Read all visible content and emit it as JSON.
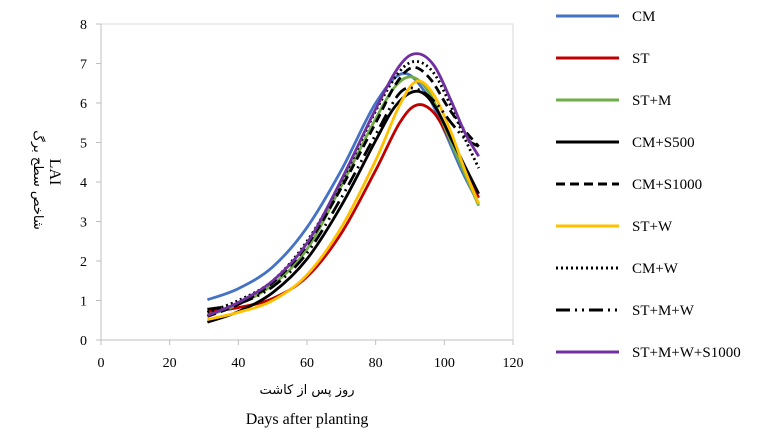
{
  "chart_data": {
    "type": "line",
    "title": "",
    "xlabel_fa": "روز پس از کاشت",
    "xlabel_en": "Days after planting",
    "ylabel_fa": "شاخص سطح برگ",
    "ylabel_en": "LAI",
    "xlim": [
      0,
      120
    ],
    "ylim": [
      0,
      8
    ],
    "x_ticks": [
      "0",
      "20",
      "40",
      "60",
      "80",
      "100",
      "120"
    ],
    "y_ticks": [
      "0",
      "1",
      "2",
      "3",
      "4",
      "5",
      "6",
      "7",
      "8"
    ],
    "grid": false,
    "legend_position": "right",
    "series": [
      {
        "name": "CM",
        "color": "#4472C4",
        "dash": "solid",
        "x": [
          31,
          40,
          50,
          60,
          70,
          80,
          88,
          95,
          100,
          105,
          110
        ],
        "y": [
          1.02,
          1.3,
          1.85,
          2.85,
          4.3,
          6.0,
          6.75,
          6.2,
          5.3,
          4.3,
          3.45
        ]
      },
      {
        "name": "ST",
        "color": "#C00000",
        "dash": "solid",
        "x": [
          31,
          40,
          50,
          60,
          70,
          80,
          87,
          92,
          97,
          102,
          106,
          110
        ],
        "y": [
          0.72,
          0.82,
          1.05,
          1.6,
          2.7,
          4.3,
          5.5,
          5.95,
          5.75,
          5.0,
          4.3,
          3.6
        ]
      },
      {
        "name": "ST+M",
        "color": "#70AD47",
        "dash": "solid",
        "x": [
          31,
          40,
          50,
          60,
          70,
          80,
          86,
          91,
          96,
          101,
          106,
          110
        ],
        "y": [
          0.62,
          0.9,
          1.4,
          2.3,
          3.9,
          5.6,
          6.45,
          6.65,
          6.2,
          5.2,
          4.2,
          3.4
        ]
      },
      {
        "name": "CM+S500",
        "color": "#000000",
        "dash": "solid",
        "x": [
          31,
          40,
          50,
          60,
          70,
          80,
          86,
          92,
          97,
          102,
          106,
          110
        ],
        "y": [
          0.45,
          0.72,
          1.2,
          2.05,
          3.4,
          5.05,
          5.95,
          6.3,
          5.95,
          5.1,
          4.4,
          3.7
        ]
      },
      {
        "name": "CM+S1000",
        "color": "#000000",
        "dash": "9 5",
        "x": [
          31,
          40,
          50,
          60,
          70,
          80,
          86,
          91,
          96,
          101,
          106,
          110
        ],
        "y": [
          0.6,
          0.9,
          1.45,
          2.4,
          3.85,
          5.5,
          6.5,
          6.9,
          6.6,
          5.9,
          5.3,
          4.9
        ]
      },
      {
        "name": "ST+W",
        "color": "#FFC000",
        "dash": "solid",
        "x": [
          31,
          40,
          50,
          60,
          70,
          80,
          87,
          92,
          97,
          102,
          106,
          110
        ],
        "y": [
          0.52,
          0.7,
          1.0,
          1.65,
          2.85,
          4.55,
          5.95,
          6.55,
          6.2,
          5.25,
          4.3,
          3.45
        ]
      },
      {
        "name": "CM+W",
        "color": "#000000",
        "dash": "2 3",
        "x": [
          31,
          40,
          50,
          60,
          70,
          80,
          87,
          92,
          97,
          102,
          106,
          110
        ],
        "y": [
          0.7,
          1.0,
          1.5,
          2.5,
          4.0,
          5.8,
          6.8,
          7.05,
          6.75,
          5.9,
          5.1,
          4.35
        ]
      },
      {
        "name": "ST+M+W",
        "color": "#000000",
        "dash": "14 5 2 5 2 5",
        "x": [
          31,
          40,
          50,
          60,
          70,
          80,
          87,
          92,
          97,
          102,
          106,
          110
        ],
        "y": [
          0.78,
          0.92,
          1.35,
          2.2,
          3.6,
          5.2,
          6.25,
          6.35,
          6.05,
          5.5,
          5.1,
          4.9
        ]
      },
      {
        "name": "ST+M+W+S1000",
        "color": "#7030A0",
        "dash": "solid",
        "x": [
          31,
          40,
          50,
          60,
          70,
          80,
          87,
          92,
          97,
          102,
          106,
          110
        ],
        "y": [
          0.62,
          0.95,
          1.5,
          2.45,
          4.05,
          5.85,
          6.95,
          7.25,
          6.95,
          6.05,
          5.25,
          4.65
        ]
      }
    ]
  }
}
